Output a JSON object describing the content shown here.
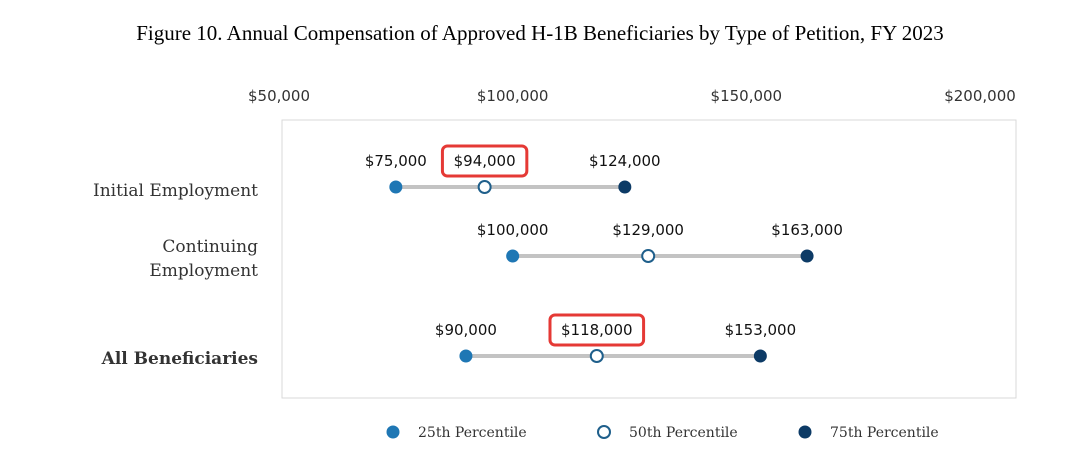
{
  "chart_data": {
    "type": "dot-range",
    "title": "Figure 10. Annual Compensation of Approved H-1B Beneficiaries by Type of Petition, FY 2023",
    "x_ticks": [
      {
        "value": 50000,
        "label": "$50,000"
      },
      {
        "value": 100000,
        "label": "$100,000"
      },
      {
        "value": 150000,
        "label": "$150,000"
      },
      {
        "value": 200000,
        "label": "$200,000"
      }
    ],
    "xlim": [
      50000,
      200000
    ],
    "categories": [
      {
        "lines": [
          "Initial Employment"
        ],
        "bold": false,
        "p25": 75000,
        "p50": 94000,
        "p75": 124000,
        "labels": {
          "p25": "$75,000",
          "p50": "$94,000",
          "p75": "$124,000"
        },
        "highlight": "p50"
      },
      {
        "lines": [
          "Continuing",
          "Employment"
        ],
        "bold": false,
        "p25": 100000,
        "p50": 129000,
        "p75": 163000,
        "labels": {
          "p25": "$100,000",
          "p50": "$129,000",
          "p75": "$163,000"
        },
        "highlight": null
      },
      {
        "lines": [
          "All Beneficiaries"
        ],
        "bold": true,
        "p25": 90000,
        "p50": 118000,
        "p75": 153000,
        "labels": {
          "p25": "$90,000",
          "p50": "$118,000",
          "p75": "$153,000"
        },
        "highlight": "p50"
      }
    ],
    "series": [
      {
        "key": "p25",
        "name": "25th Percentile",
        "color": "#1f77b4",
        "fill": "#1f77b4"
      },
      {
        "key": "p50",
        "name": "50th Percentile",
        "color": "#1f5f8b",
        "fill": "#ffffff"
      },
      {
        "key": "p75",
        "name": "75th Percentile",
        "color": "#0d3b66",
        "fill": "#0d3b66"
      }
    ],
    "legend_position": "bottom",
    "colors": {
      "range_line": "#c3c3c3",
      "highlight_box": "#e53935",
      "frame": "#d9d9d9"
    }
  }
}
